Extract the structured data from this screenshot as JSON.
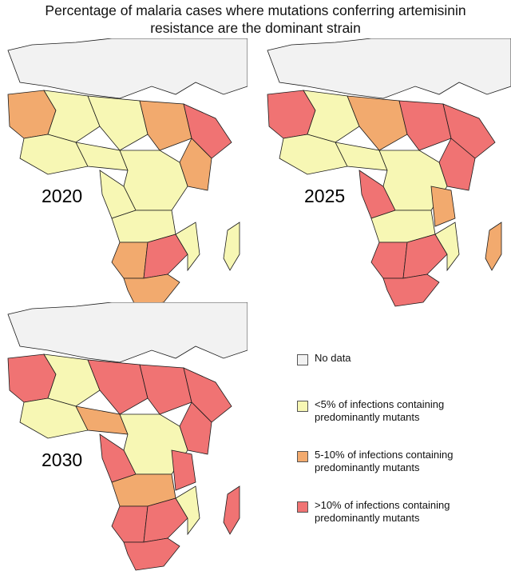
{
  "title": "Percentage of malaria cases where mutations conferring artemisinin\nresistance are the dominant strain",
  "colors": {
    "no_data": "#f2f2f2",
    "lt5": "#f7f7b4",
    "p5_10": "#f2aa6e",
    "gt10": "#f07373",
    "sea": "#ffffff",
    "border": "#1a1a1a"
  },
  "panels": [
    {
      "year": "2020"
    },
    {
      "year": "2025"
    },
    {
      "year": "2030"
    }
  ],
  "legend": [
    {
      "key": "no_data",
      "label": "No data"
    },
    {
      "key": "lt5",
      "label": "<5% of infections containing\npredominantly mutants"
    },
    {
      "key": "p5_10",
      "label": "5-10% of infections containing\npredominantly mutants"
    },
    {
      "key": "gt10",
      "label": ">10% of infections containing\npredominantly mutants"
    }
  ]
}
